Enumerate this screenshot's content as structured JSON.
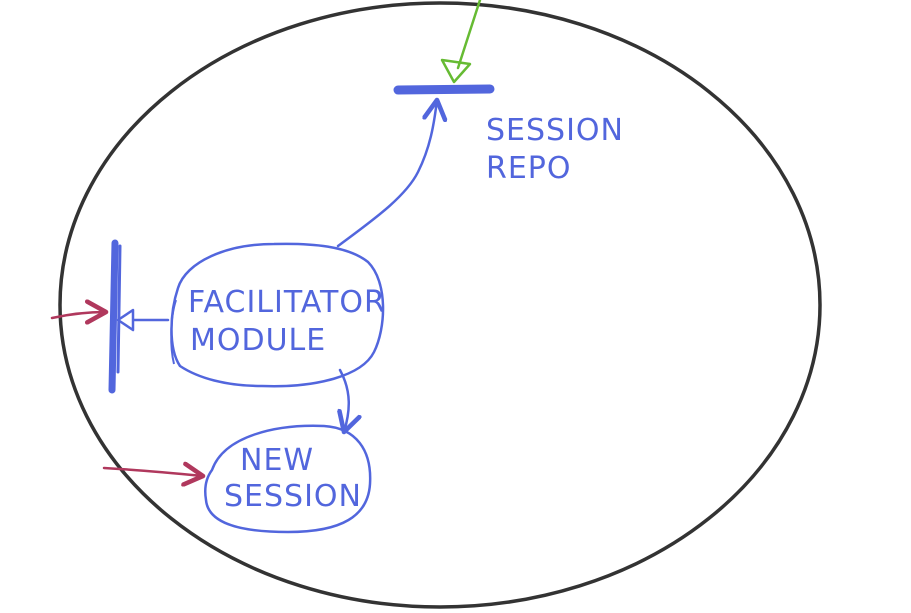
{
  "diagram": {
    "labels": {
      "session_repo_line1": "SESSION",
      "session_repo_line2": "REPO",
      "facilitator_line1": "FACILITATOR",
      "facilitator_line2": "MODULE",
      "new_session_line1": "NEW",
      "new_session_line2": "SESSION"
    },
    "colors": {
      "boundary": "#333333",
      "component": "#5266dd",
      "external_in": "#b0385d",
      "external_top": "#66bb33",
      "background": "#ffffff"
    }
  }
}
